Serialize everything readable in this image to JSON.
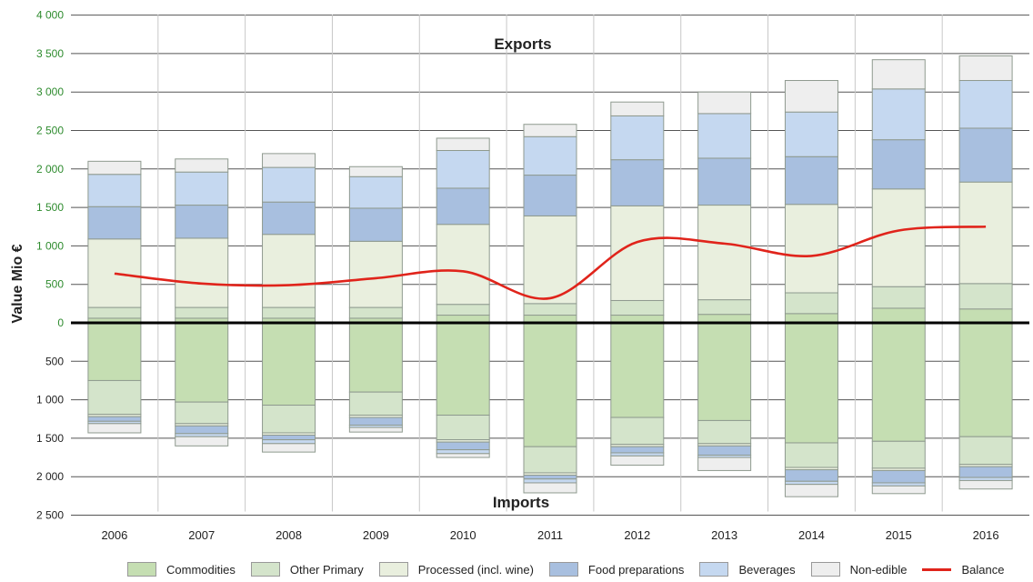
{
  "chart_data": {
    "type": "bar",
    "subtype": "stacked-diverging",
    "ylabel": "Value Mio €",
    "xlabel": "",
    "categories": [
      "2006",
      "2007",
      "2008",
      "2009",
      "2010",
      "2011",
      "2012",
      "2013",
      "2014",
      "2015",
      "2016"
    ],
    "ylim_exports": [
      0,
      4000
    ],
    "ylim_imports": [
      0,
      2500
    ],
    "y_tick_labels_exports": [
      "0",
      "500",
      "1 000",
      "1 500",
      "2 000",
      "2 500",
      "3 000",
      "3 500",
      "4 000"
    ],
    "y_tick_labels_imports": [
      "500",
      "1 000",
      "1 500",
      "2 000",
      "2 500"
    ],
    "annotations": {
      "top": "Exports",
      "bottom": "Imports"
    },
    "grid": true,
    "legend_position": "bottom",
    "exports": [
      {
        "name": "Commodities",
        "values": [
          60,
          60,
          60,
          60,
          100,
          100,
          100,
          110,
          120,
          190,
          180
        ]
      },
      {
        "name": "Other Primary",
        "values": [
          140,
          140,
          140,
          140,
          140,
          150,
          190,
          190,
          270,
          280,
          330
        ]
      },
      {
        "name": "Processed (incl. wine)",
        "values": [
          890,
          900,
          950,
          860,
          1040,
          1140,
          1230,
          1230,
          1150,
          1270,
          1320
        ]
      },
      {
        "name": "Food preparations",
        "values": [
          420,
          430,
          420,
          430,
          470,
          530,
          600,
          610,
          620,
          640,
          700
        ]
      },
      {
        "name": "Beverages",
        "values": [
          420,
          430,
          450,
          410,
          490,
          500,
          570,
          580,
          580,
          660,
          620
        ]
      },
      {
        "name": "Non-edible",
        "values": [
          170,
          170,
          180,
          130,
          160,
          160,
          180,
          280,
          410,
          380,
          320
        ]
      }
    ],
    "imports": [
      {
        "name": "Commodities",
        "values": [
          750,
          1030,
          1070,
          900,
          1200,
          1610,
          1230,
          1270,
          1560,
          1540,
          1480
        ]
      },
      {
        "name": "Other Primary",
        "values": [
          440,
          280,
          360,
          300,
          320,
          340,
          350,
          300,
          320,
          350,
          360
        ]
      },
      {
        "name": "Processed (incl. wine)",
        "values": [
          30,
          30,
          30,
          30,
          30,
          30,
          30,
          30,
          30,
          30,
          30
        ]
      },
      {
        "name": "Food preparations",
        "values": [
          60,
          100,
          60,
          100,
          100,
          50,
          80,
          120,
          150,
          160,
          140
        ]
      },
      {
        "name": "Beverages",
        "values": [
          30,
          40,
          50,
          30,
          50,
          50,
          40,
          30,
          40,
          40,
          40
        ]
      },
      {
        "name": "Non-edible",
        "values": [
          120,
          120,
          110,
          60,
          50,
          130,
          120,
          170,
          160,
          100,
          110
        ]
      }
    ],
    "balance": {
      "name": "Balance",
      "x": [
        2006,
        2007,
        2008,
        2009,
        2010,
        2011,
        2012,
        2013,
        2014,
        2015,
        2016
      ],
      "values": [
        640,
        510,
        490,
        580,
        670,
        320,
        1050,
        1030,
        870,
        1200,
        1250
      ]
    }
  },
  "legend": {
    "items": [
      {
        "label": "Commodities",
        "color": "#c5deb2",
        "kind": "swatch"
      },
      {
        "label": "Other Primary",
        "color": "#d4e4cb",
        "kind": "swatch"
      },
      {
        "label": "Processed (incl. wine)",
        "color": "#e9efde",
        "kind": "swatch"
      },
      {
        "label": "Food preparations",
        "color": "#a8bfdf",
        "kind": "swatch"
      },
      {
        "label": "Beverages",
        "color": "#c5d8f0",
        "kind": "swatch"
      },
      {
        "label": "Non-edible",
        "color": "#eeeeee",
        "kind": "swatch"
      },
      {
        "label": "Balance",
        "color": "#e0241b",
        "kind": "line"
      }
    ]
  },
  "colors": {
    "export_tick_labels": "#2e8b2e",
    "import_tick_labels": "#222222",
    "balance_line": "#e0241b",
    "bar_outline": "#8f9a8f"
  }
}
